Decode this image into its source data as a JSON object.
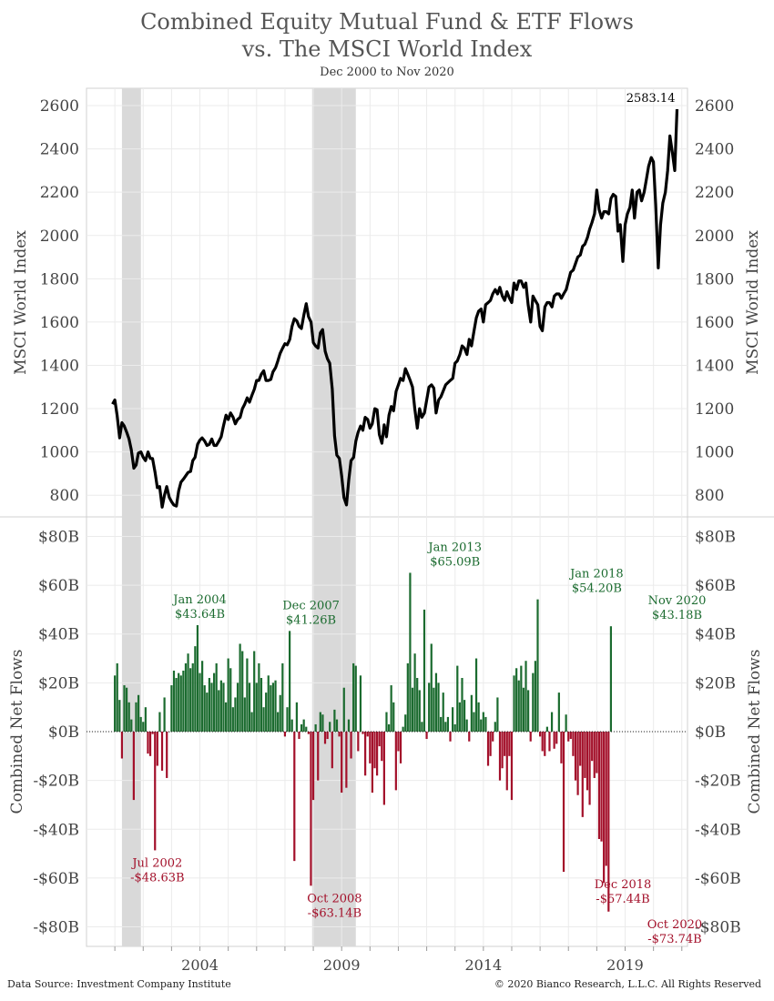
{
  "header": {
    "title_line1": "Combined Equity Mutual Fund & ETF Flows",
    "title_line2": "vs. The MSCI World Index",
    "subtitle": "Dec 2000 to Nov 2020"
  },
  "footer": {
    "source": "Data Source: Investment Company Institute",
    "copyright": "© 2020 Bianco Research, L.L.C. All Rights Reserved"
  },
  "colors": {
    "line": "#000000",
    "inflow": "#1b6b2f",
    "outflow": "#a3102a",
    "recession": "#d9d9d9",
    "grid": "#ebebeb"
  },
  "chart_data": [
    {
      "type": "line",
      "name": "msci",
      "ylabel": "MSCI World Index",
      "ylim": [
        700,
        2680
      ],
      "yticks": [
        800,
        1000,
        1200,
        1400,
        1600,
        1800,
        2000,
        2200,
        2400,
        2600
      ],
      "xlim": [
        2000.0,
        2021.2
      ],
      "xticks": [
        2004,
        2009,
        2014,
        2019
      ],
      "grid": true,
      "recessions": [
        [
          2001.25,
          2001.92
        ],
        [
          2007.96,
          2009.5
        ]
      ],
      "last_value_label": "2583.14",
      "points": [
        [
          2000.92,
          1221
        ],
        [
          2001.0,
          1240
        ],
        [
          2001.08,
          1170
        ],
        [
          2001.17,
          1065
        ],
        [
          2001.25,
          1135
        ],
        [
          2001.33,
          1120
        ],
        [
          2001.42,
          1090
        ],
        [
          2001.5,
          1060
        ],
        [
          2001.58,
          1010
        ],
        [
          2001.67,
          925
        ],
        [
          2001.75,
          940
        ],
        [
          2001.83,
          995
        ],
        [
          2001.92,
          1000
        ],
        [
          2002.0,
          975
        ],
        [
          2002.08,
          960
        ],
        [
          2002.17,
          1000
        ],
        [
          2002.25,
          970
        ],
        [
          2002.33,
          970
        ],
        [
          2002.42,
          905
        ],
        [
          2002.5,
          835
        ],
        [
          2002.58,
          840
        ],
        [
          2002.67,
          745
        ],
        [
          2002.75,
          800
        ],
        [
          2002.83,
          840
        ],
        [
          2002.92,
          790
        ],
        [
          2003.0,
          770
        ],
        [
          2003.08,
          755
        ],
        [
          2003.17,
          750
        ],
        [
          2003.25,
          820
        ],
        [
          2003.33,
          860
        ],
        [
          2003.42,
          875
        ],
        [
          2003.5,
          890
        ],
        [
          2003.58,
          905
        ],
        [
          2003.67,
          910
        ],
        [
          2003.75,
          960
        ],
        [
          2003.83,
          975
        ],
        [
          2003.92,
          1035
        ],
        [
          2004.0,
          1055
        ],
        [
          2004.08,
          1065
        ],
        [
          2004.17,
          1050
        ],
        [
          2004.25,
          1030
        ],
        [
          2004.33,
          1035
        ],
        [
          2004.42,
          1060
        ],
        [
          2004.5,
          1030
        ],
        [
          2004.58,
          1030
        ],
        [
          2004.67,
          1050
        ],
        [
          2004.75,
          1070
        ],
        [
          2004.83,
          1120
        ],
        [
          2004.92,
          1170
        ],
        [
          2005.0,
          1150
        ],
        [
          2005.08,
          1180
        ],
        [
          2005.17,
          1160
        ],
        [
          2005.25,
          1130
        ],
        [
          2005.33,
          1150
        ],
        [
          2005.42,
          1160
        ],
        [
          2005.5,
          1200
        ],
        [
          2005.58,
          1220
        ],
        [
          2005.67,
          1250
        ],
        [
          2005.75,
          1230
        ],
        [
          2005.83,
          1260
        ],
        [
          2005.92,
          1290
        ],
        [
          2006.0,
          1330
        ],
        [
          2006.08,
          1330
        ],
        [
          2006.17,
          1360
        ],
        [
          2006.25,
          1375
        ],
        [
          2006.33,
          1330
        ],
        [
          2006.42,
          1330
        ],
        [
          2006.5,
          1335
        ],
        [
          2006.58,
          1370
        ],
        [
          2006.67,
          1390
        ],
        [
          2006.75,
          1420
        ],
        [
          2006.83,
          1455
        ],
        [
          2006.92,
          1480
        ],
        [
          2007.0,
          1500
        ],
        [
          2007.08,
          1495
        ],
        [
          2007.17,
          1520
        ],
        [
          2007.25,
          1580
        ],
        [
          2007.33,
          1615
        ],
        [
          2007.42,
          1605
        ],
        [
          2007.5,
          1580
        ],
        [
          2007.58,
          1570
        ],
        [
          2007.67,
          1635
        ],
        [
          2007.75,
          1685
        ],
        [
          2007.83,
          1625
        ],
        [
          2007.92,
          1600
        ],
        [
          2008.0,
          1505
        ],
        [
          2008.08,
          1490
        ],
        [
          2008.17,
          1480
        ],
        [
          2008.25,
          1550
        ],
        [
          2008.33,
          1565
        ],
        [
          2008.42,
          1465
        ],
        [
          2008.5,
          1430
        ],
        [
          2008.58,
          1410
        ],
        [
          2008.67,
          1290
        ],
        [
          2008.75,
          1075
        ],
        [
          2008.83,
          985
        ],
        [
          2008.92,
          970
        ],
        [
          2009.0,
          890
        ],
        [
          2009.08,
          790
        ],
        [
          2009.17,
          755
        ],
        [
          2009.25,
          870
        ],
        [
          2009.33,
          960
        ],
        [
          2009.42,
          975
        ],
        [
          2009.5,
          1050
        ],
        [
          2009.58,
          1090
        ],
        [
          2009.67,
          1120
        ],
        [
          2009.75,
          1100
        ],
        [
          2009.83,
          1160
        ],
        [
          2009.92,
          1150
        ],
        [
          2010.0,
          1110
        ],
        [
          2010.08,
          1130
        ],
        [
          2010.17,
          1200
        ],
        [
          2010.25,
          1195
        ],
        [
          2010.33,
          1080
        ],
        [
          2010.42,
          1040
        ],
        [
          2010.5,
          1125
        ],
        [
          2010.58,
          1070
        ],
        [
          2010.67,
          1170
        ],
        [
          2010.75,
          1210
        ],
        [
          2010.83,
          1190
        ],
        [
          2010.92,
          1280
        ],
        [
          2011.0,
          1310
        ],
        [
          2011.08,
          1340
        ],
        [
          2011.17,
          1330
        ],
        [
          2011.25,
          1385
        ],
        [
          2011.33,
          1360
        ],
        [
          2011.42,
          1330
        ],
        [
          2011.5,
          1300
        ],
        [
          2011.58,
          1200
        ],
        [
          2011.67,
          1110
        ],
        [
          2011.75,
          1200
        ],
        [
          2011.83,
          1160
        ],
        [
          2011.92,
          1180
        ],
        [
          2012.0,
          1240
        ],
        [
          2012.08,
          1300
        ],
        [
          2012.17,
          1310
        ],
        [
          2012.25,
          1295
        ],
        [
          2012.33,
          1180
        ],
        [
          2012.42,
          1240
        ],
        [
          2012.5,
          1255
        ],
        [
          2012.58,
          1280
        ],
        [
          2012.67,
          1310
        ],
        [
          2012.75,
          1320
        ],
        [
          2012.83,
          1330
        ],
        [
          2012.92,
          1340
        ],
        [
          2013.0,
          1410
        ],
        [
          2013.08,
          1420
        ],
        [
          2013.17,
          1450
        ],
        [
          2013.25,
          1490
        ],
        [
          2013.33,
          1480
        ],
        [
          2013.42,
          1450
        ],
        [
          2013.5,
          1520
        ],
        [
          2013.58,
          1490
        ],
        [
          2013.67,
          1560
        ],
        [
          2013.75,
          1620
        ],
        [
          2013.83,
          1650
        ],
        [
          2013.92,
          1660
        ],
        [
          2014.0,
          1600
        ],
        [
          2014.08,
          1680
        ],
        [
          2014.17,
          1690
        ],
        [
          2014.25,
          1700
        ],
        [
          2014.33,
          1730
        ],
        [
          2014.42,
          1750
        ],
        [
          2014.5,
          1730
        ],
        [
          2014.58,
          1760
        ],
        [
          2014.67,
          1720
        ],
        [
          2014.75,
          1700
        ],
        [
          2014.83,
          1740
        ],
        [
          2014.92,
          1710
        ],
        [
          2015.0,
          1690
        ],
        [
          2015.08,
          1780
        ],
        [
          2015.17,
          1750
        ],
        [
          2015.25,
          1790
        ],
        [
          2015.33,
          1790
        ],
        [
          2015.42,
          1760
        ],
        [
          2015.5,
          1780
        ],
        [
          2015.58,
          1680
        ],
        [
          2015.67,
          1600
        ],
        [
          2015.75,
          1720
        ],
        [
          2015.83,
          1700
        ],
        [
          2015.92,
          1680
        ],
        [
          2016.0,
          1580
        ],
        [
          2016.08,
          1560
        ],
        [
          2016.17,
          1670
        ],
        [
          2016.25,
          1690
        ],
        [
          2016.33,
          1690
        ],
        [
          2016.42,
          1670
        ],
        [
          2016.5,
          1720
        ],
        [
          2016.58,
          1730
        ],
        [
          2016.67,
          1730
        ],
        [
          2016.75,
          1710
        ],
        [
          2016.83,
          1730
        ],
        [
          2016.92,
          1750
        ],
        [
          2017.0,
          1790
        ],
        [
          2017.08,
          1830
        ],
        [
          2017.17,
          1840
        ],
        [
          2017.25,
          1870
        ],
        [
          2017.33,
          1900
        ],
        [
          2017.42,
          1910
        ],
        [
          2017.5,
          1950
        ],
        [
          2017.58,
          1960
        ],
        [
          2017.67,
          1990
        ],
        [
          2017.75,
          2030
        ],
        [
          2017.83,
          2060
        ],
        [
          2017.92,
          2100
        ],
        [
          2018.0,
          2210
        ],
        [
          2018.08,
          2120
        ],
        [
          2018.17,
          2080
        ],
        [
          2018.25,
          2110
        ],
        [
          2018.33,
          2110
        ],
        [
          2018.42,
          2100
        ],
        [
          2018.5,
          2170
        ],
        [
          2018.58,
          2190
        ],
        [
          2018.67,
          2180
        ],
        [
          2018.75,
          2020
        ],
        [
          2018.83,
          2050
        ],
        [
          2018.92,
          1880
        ],
        [
          2019.0,
          2050
        ],
        [
          2019.08,
          2100
        ],
        [
          2019.17,
          2130
        ],
        [
          2019.25,
          2210
        ],
        [
          2019.33,
          2080
        ],
        [
          2019.42,
          2200
        ],
        [
          2019.5,
          2210
        ],
        [
          2019.58,
          2160
        ],
        [
          2019.67,
          2200
        ],
        [
          2019.75,
          2260
        ],
        [
          2019.83,
          2320
        ],
        [
          2019.92,
          2360
        ],
        [
          2020.0,
          2340
        ],
        [
          2020.08,
          2140
        ],
        [
          2020.17,
          1850
        ],
        [
          2020.25,
          2050
        ],
        [
          2020.33,
          2150
        ],
        [
          2020.42,
          2200
        ],
        [
          2020.5,
          2300
        ],
        [
          2020.58,
          2460
        ],
        [
          2020.67,
          2380
        ],
        [
          2020.75,
          2300
        ],
        [
          2020.83,
          2583.14
        ]
      ]
    },
    {
      "type": "bar",
      "name": "flows",
      "ylabel": "Combined Net Flows",
      "ylim": [
        -88,
        88
      ],
      "yticks": [
        -80,
        -60,
        -40,
        -20,
        0,
        20,
        40,
        60,
        80
      ],
      "ytick_labels": [
        "-$80B",
        "-$60B",
        "-$40B",
        "-$20B",
        "$0B",
        "$20B",
        "$40B",
        "$60B",
        "$80B"
      ],
      "xlim": [
        2000.0,
        2021.2
      ],
      "xticks": [
        2004,
        2009,
        2014,
        2019
      ],
      "start_year": 2001.0,
      "step": 0.08333,
      "grid": true,
      "values": [
        23,
        28,
        13,
        -11,
        19,
        18,
        12,
        5,
        -28,
        12,
        15,
        6,
        4,
        10,
        -9,
        -10,
        -1,
        -48.63,
        -14,
        8,
        -16,
        14,
        -19,
        0,
        19,
        25,
        22,
        24,
        23,
        25,
        28,
        32,
        26,
        28,
        35,
        43.64,
        24,
        29,
        19,
        16,
        22,
        20,
        24,
        28,
        17,
        21,
        20,
        12,
        30,
        26,
        10,
        14,
        20,
        36,
        33,
        14,
        30,
        20,
        8,
        33,
        20,
        28,
        22,
        10,
        16,
        23,
        19,
        20,
        21,
        8,
        15,
        28,
        -2,
        10,
        41.26,
        5,
        -53,
        12,
        -3,
        3,
        5,
        2,
        -1,
        -63.14,
        -28,
        3,
        -20,
        8,
        7,
        -5,
        -3,
        4,
        -15,
        9,
        5,
        -2,
        -25,
        18,
        -23,
        5,
        -11,
        28,
        27,
        -8,
        23,
        -1,
        -18,
        -2,
        -13,
        -25,
        -15,
        -18,
        -6,
        -12,
        -30,
        8,
        3,
        19,
        12,
        -24,
        -8,
        -13,
        2,
        7,
        28,
        65.09,
        18,
        32,
        22,
        17,
        4,
        50,
        -3,
        20,
        36,
        18,
        24,
        20,
        6,
        16,
        4,
        6,
        -4,
        10,
        3,
        27,
        12,
        22,
        13,
        5,
        -4,
        15,
        8,
        30,
        12,
        5,
        8,
        6,
        -14,
        -10,
        -4,
        4,
        14,
        -20,
        -15,
        -10,
        -24,
        -10,
        -28,
        23,
        26,
        21,
        27,
        18,
        29,
        17,
        -4,
        24,
        29,
        54.2,
        -2,
        -8,
        -10,
        2,
        -8,
        8,
        -7,
        -5,
        16,
        -13,
        -57.44,
        7,
        -4,
        -3,
        -10,
        -20,
        -26,
        -14,
        -35,
        -19,
        -24,
        -30,
        -12,
        -19,
        -17,
        -44,
        -45,
        -62,
        -55,
        -73.74,
        43.18
      ],
      "annotations": [
        {
          "date": "Jul 2002",
          "value_label": "-$48.63B",
          "x": 2002.5,
          "value": -48.63
        },
        {
          "date": "Jan 2004",
          "value_label": "$43.64B",
          "x": 2004.0,
          "value": 43.64
        },
        {
          "date": "Dec 2007",
          "value_label": "$41.26B",
          "x": 2007.92,
          "value": 41.26
        },
        {
          "date": "Oct 2008",
          "value_label": "-$63.14B",
          "x": 2008.75,
          "value": -63.14
        },
        {
          "date": "Jan 2013",
          "value_label": "$65.09B",
          "x": 2013.0,
          "value": 65.09
        },
        {
          "date": "Jan 2018",
          "value_label": "$54.20B",
          "x": 2018.0,
          "value": 54.2
        },
        {
          "date": "Dec 2018",
          "value_label": "-$57.44B",
          "x": 2018.92,
          "value": -57.44
        },
        {
          "date": "Oct 2020",
          "value_label": "-$73.74B",
          "x": 2020.75,
          "value": -73.74
        },
        {
          "date": "Nov 2020",
          "value_label": "$43.18B",
          "x": 2020.83,
          "value": 43.18
        }
      ]
    }
  ]
}
